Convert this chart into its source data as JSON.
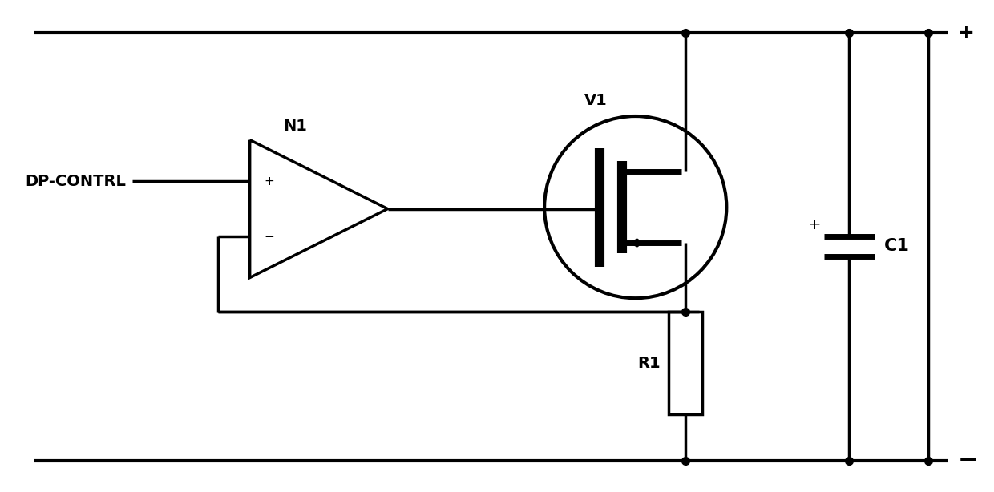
{
  "bg_color": "#ffffff",
  "line_color": "#000000",
  "line_width": 2.5,
  "fig_width": 12.4,
  "fig_height": 6.14,
  "dpi": 100,
  "label_dp_contrl": "DP-CONTRL",
  "label_n1": "N1",
  "label_v1": "V1",
  "label_r1": "R1",
  "label_c1": "C1",
  "label_plus_top": "+",
  "label_minus_bottom": "−",
  "label_plus_cap": "+",
  "font_family": "DejaVu Sans",
  "font_size_labels": 14,
  "font_size_plusminus": 12,
  "font_size_rail": 18
}
